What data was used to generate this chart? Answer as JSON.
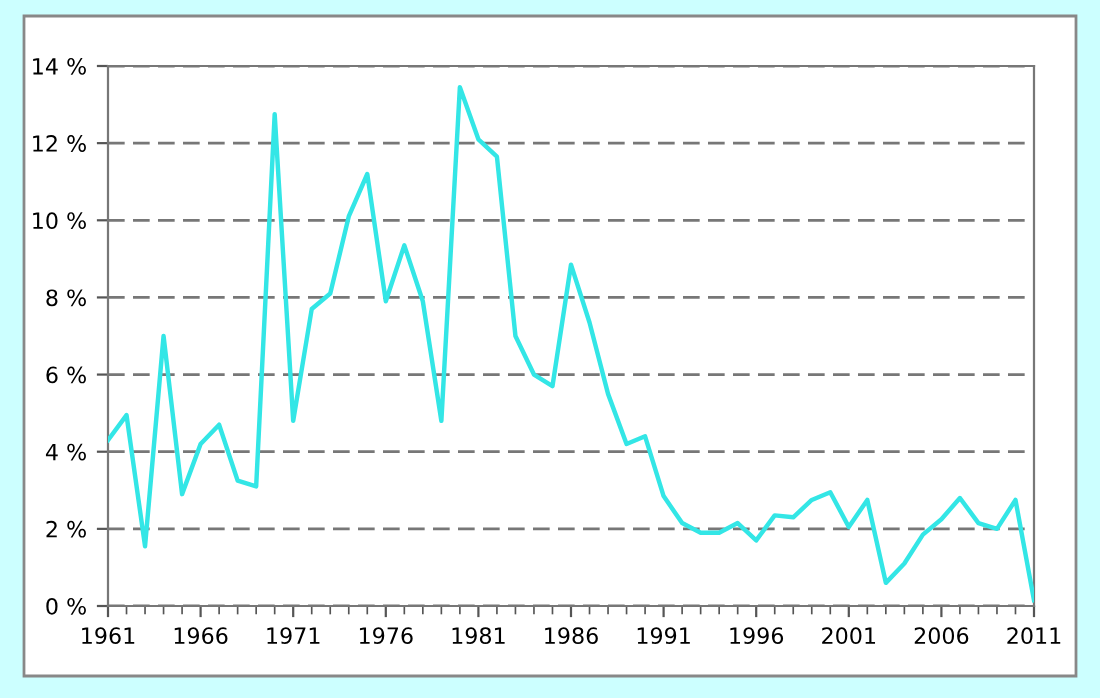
{
  "chart_data": {
    "type": "line",
    "color": "#33e6e6",
    "x": [
      1961,
      1962,
      1963,
      1964,
      1965,
      1966,
      1967,
      1968,
      1969,
      1970,
      1971,
      1972,
      1973,
      1974,
      1975,
      1976,
      1977,
      1978,
      1979,
      1980,
      1981,
      1982,
      1983,
      1984,
      1985,
      1986,
      1987,
      1988,
      1989,
      1990,
      1991,
      1992,
      1993,
      1994,
      1995,
      1996,
      1997,
      1998,
      1999,
      2000,
      2001,
      2002,
      2003,
      2004,
      2005,
      2006,
      2007,
      2008,
      2009,
      2010,
      2011
    ],
    "values": [
      4.3,
      4.95,
      1.55,
      7.0,
      2.9,
      4.2,
      4.7,
      3.25,
      3.1,
      12.75,
      4.8,
      7.7,
      8.1,
      10.1,
      11.2,
      7.9,
      9.35,
      7.9,
      4.8,
      13.45,
      12.1,
      11.65,
      7.0,
      6.0,
      5.7,
      8.85,
      7.35,
      5.5,
      4.2,
      4.4,
      2.85,
      2.15,
      1.9,
      1.9,
      2.15,
      1.7,
      2.35,
      2.3,
      2.75,
      2.95,
      2.05,
      2.75,
      0.6,
      1.1,
      1.85,
      2.25,
      2.8,
      2.15,
      2.0,
      2.75,
      0.15
    ],
    "xlim": [
      1961,
      2011
    ],
    "xticks": [
      1961,
      1966,
      1971,
      1976,
      1981,
      1986,
      1991,
      1996,
      2001,
      2006,
      2011
    ],
    "ylim": [
      0,
      14
    ],
    "yticks": [
      {
        "value": 0,
        "label": "0 %"
      },
      {
        "value": 2,
        "label": "2 %"
      },
      {
        "value": 4,
        "label": "4 %"
      },
      {
        "value": 6,
        "label": "6 %"
      },
      {
        "value": 8,
        "label": "8 %"
      },
      {
        "value": 10,
        "label": "10 %"
      },
      {
        "value": 12,
        "label": "12 %"
      },
      {
        "value": 14,
        "label": "14 %"
      }
    ],
    "grid": "y",
    "marker": "none",
    "line_style": "solid"
  }
}
